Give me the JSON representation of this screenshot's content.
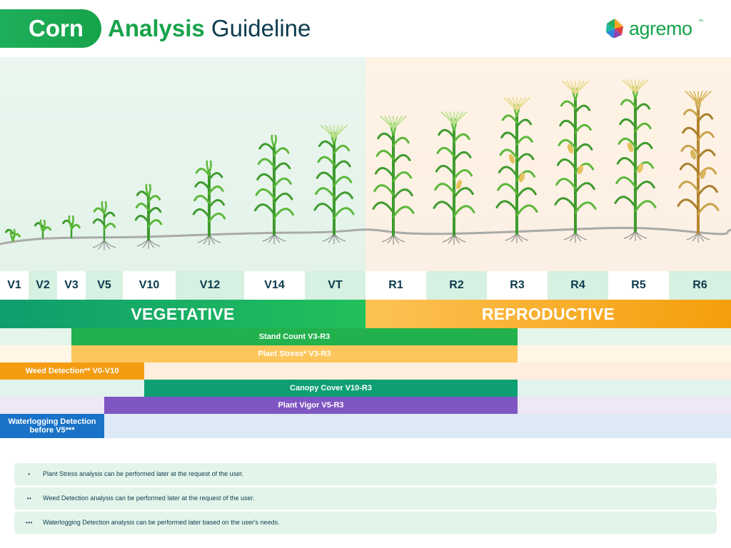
{
  "header": {
    "title_highlight": "Corn",
    "title_accent": "Analysis",
    "title_rest": "Guideline",
    "logo_text": "agremo",
    "logo_tm": "™"
  },
  "stages": [
    "V1",
    "V2",
    "V3",
    "V5",
    "V10",
    "V12",
    "V14",
    "VT",
    "R1",
    "R2",
    "R3",
    "R4",
    "R5",
    "R6"
  ],
  "phases": {
    "vegetative": "VEGETATIVE",
    "reproductive": "REPRODUCTIVE"
  },
  "analyses": {
    "stand_count": "Stand Count V3-R3",
    "plant_stress": "Plant Stress* V3-R3",
    "weed_detection": "Weed Detection** V0-V10",
    "canopy_cover": "Canopy Cover V10-R3",
    "plant_vigor": "Plant Vigor V5-R3",
    "waterlogging": "Waterlogging Detection before V5***"
  },
  "notes": [
    {
      "mark": "•",
      "text": "Plant Stress analysis can be performed later at the request of the user."
    },
    {
      "mark": "••",
      "text": "Weed Detection analysis can be performed later at the request of the user."
    },
    {
      "mark": "•••",
      "text": "Waterlogging Detection analysis can be performed later based on the user's needs."
    }
  ],
  "colors": {
    "stand_count": "#22b14c",
    "plant_stress": "#fdc65c",
    "weed_detection": "#f39c12",
    "canopy_cover": "#0e9f73",
    "plant_vigor": "#7e57c2",
    "waterlogging": "#1a73c8"
  }
}
